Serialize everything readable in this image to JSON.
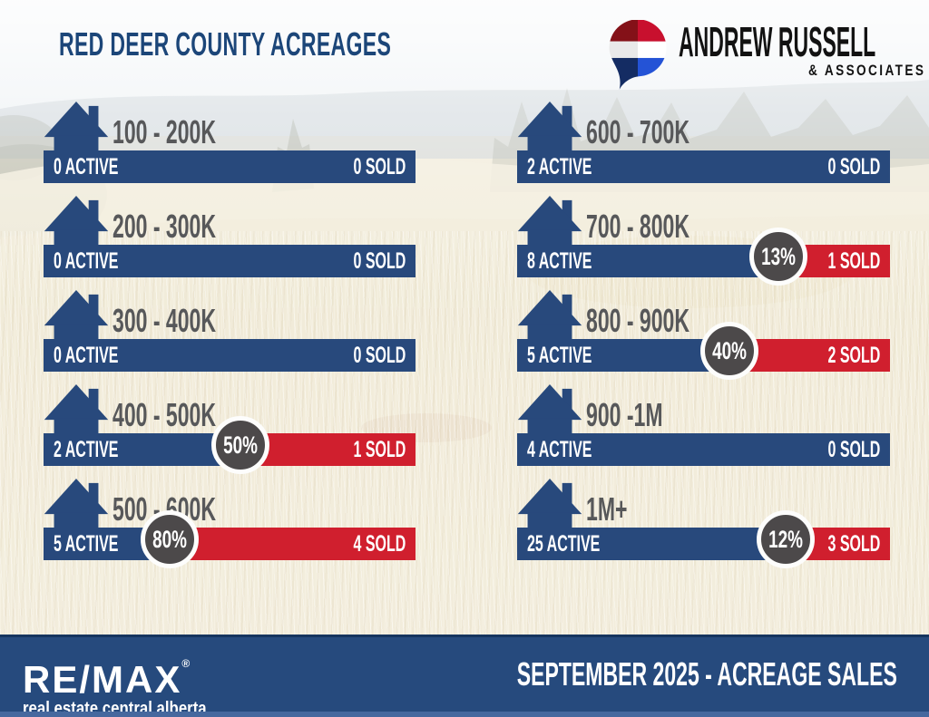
{
  "title": "RED DEER COUNTY ACREAGES",
  "brand": {
    "name": "ANDREW RUSSELL",
    "sub": "& ASSOCIATES"
  },
  "rows": [
    {
      "column": "left",
      "range": "100 - 200K",
      "active": "0 ACTIVE",
      "sold": "0 SOLD",
      "pct": null,
      "active_pct": 100
    },
    {
      "column": "left",
      "range": "200 - 300K",
      "active": "0 ACTIVE",
      "sold": "0 SOLD",
      "pct": null,
      "active_pct": 100
    },
    {
      "column": "left",
      "range": "300 - 400K",
      "active": "0 ACTIVE",
      "sold": "0 SOLD",
      "pct": null,
      "active_pct": 100
    },
    {
      "column": "left",
      "range": "400 - 500K",
      "active": "2 ACTIVE",
      "sold": "1 SOLD",
      "pct": "50%",
      "active_pct": 53
    },
    {
      "column": "left",
      "range": "500 - 600K",
      "active": "5 ACTIVE",
      "sold": "4 SOLD",
      "pct": "80%",
      "active_pct": 34
    },
    {
      "column": "right",
      "range": "600 - 700K",
      "active": "2 ACTIVE",
      "sold": "0 SOLD",
      "pct": null,
      "active_pct": 100
    },
    {
      "column": "right",
      "range": "700 - 800K",
      "active": "8 ACTIVE",
      "sold": "1 SOLD",
      "pct": "13%",
      "active_pct": 70
    },
    {
      "column": "right",
      "range": "800 - 900K",
      "active": "5 ACTIVE",
      "sold": "2 SOLD",
      "pct": "40%",
      "active_pct": 57
    },
    {
      "column": "right",
      "range": "900 -1M",
      "active": "4 ACTIVE",
      "sold": "0 SOLD",
      "pct": null,
      "active_pct": 100
    },
    {
      "column": "right",
      "range": "1M+",
      "active": "25 ACTIVE",
      "sold": "3 SOLD",
      "pct": "12%",
      "active_pct": 72
    }
  ],
  "footer": {
    "remax": "RE/MAX",
    "registered": "®",
    "remax_sub": "real estate central alberta",
    "caption": "SEPTEMBER 2025 - ACREAGE SALES"
  },
  "colors": {
    "blue": "#28497c",
    "red": "#d01f2e",
    "badge_gray": "#4c494a",
    "label_gray": "#57585a",
    "title_navy": "#1c4679",
    "footer_blue": "#264a7d",
    "balloon_red": "#c8102e",
    "balloon_dark_red": "#841118",
    "balloon_blue": "#2453d6",
    "balloon_dark_blue": "#142c63"
  },
  "chart_data": {
    "type": "bar",
    "title": "RED DEER COUNTY ACREAGES",
    "subtitle": "SEPTEMBER 2025 - ACREAGE SALES",
    "categories": [
      "100 - 200K",
      "200 - 300K",
      "300 - 400K",
      "400 - 500K",
      "500 - 600K",
      "600 - 700K",
      "700 - 800K",
      "800 - 900K",
      "900 -1M",
      "1M+"
    ],
    "series": [
      {
        "name": "ACTIVE",
        "color": "#28497c",
        "values": [
          0,
          0,
          0,
          2,
          5,
          2,
          8,
          5,
          4,
          25
        ]
      },
      {
        "name": "SOLD",
        "color": "#d01f2e",
        "values": [
          0,
          0,
          0,
          1,
          4,
          0,
          1,
          2,
          0,
          3
        ]
      }
    ],
    "percent_badges": [
      null,
      null,
      null,
      "50%",
      "80%",
      null,
      "13%",
      "40%",
      null,
      "12%"
    ],
    "legend_position": "none",
    "grid": false,
    "layout": "two-column stacked horizontal bars, active (blue) left segment, sold (red) right segment, grey circle badge at split"
  }
}
